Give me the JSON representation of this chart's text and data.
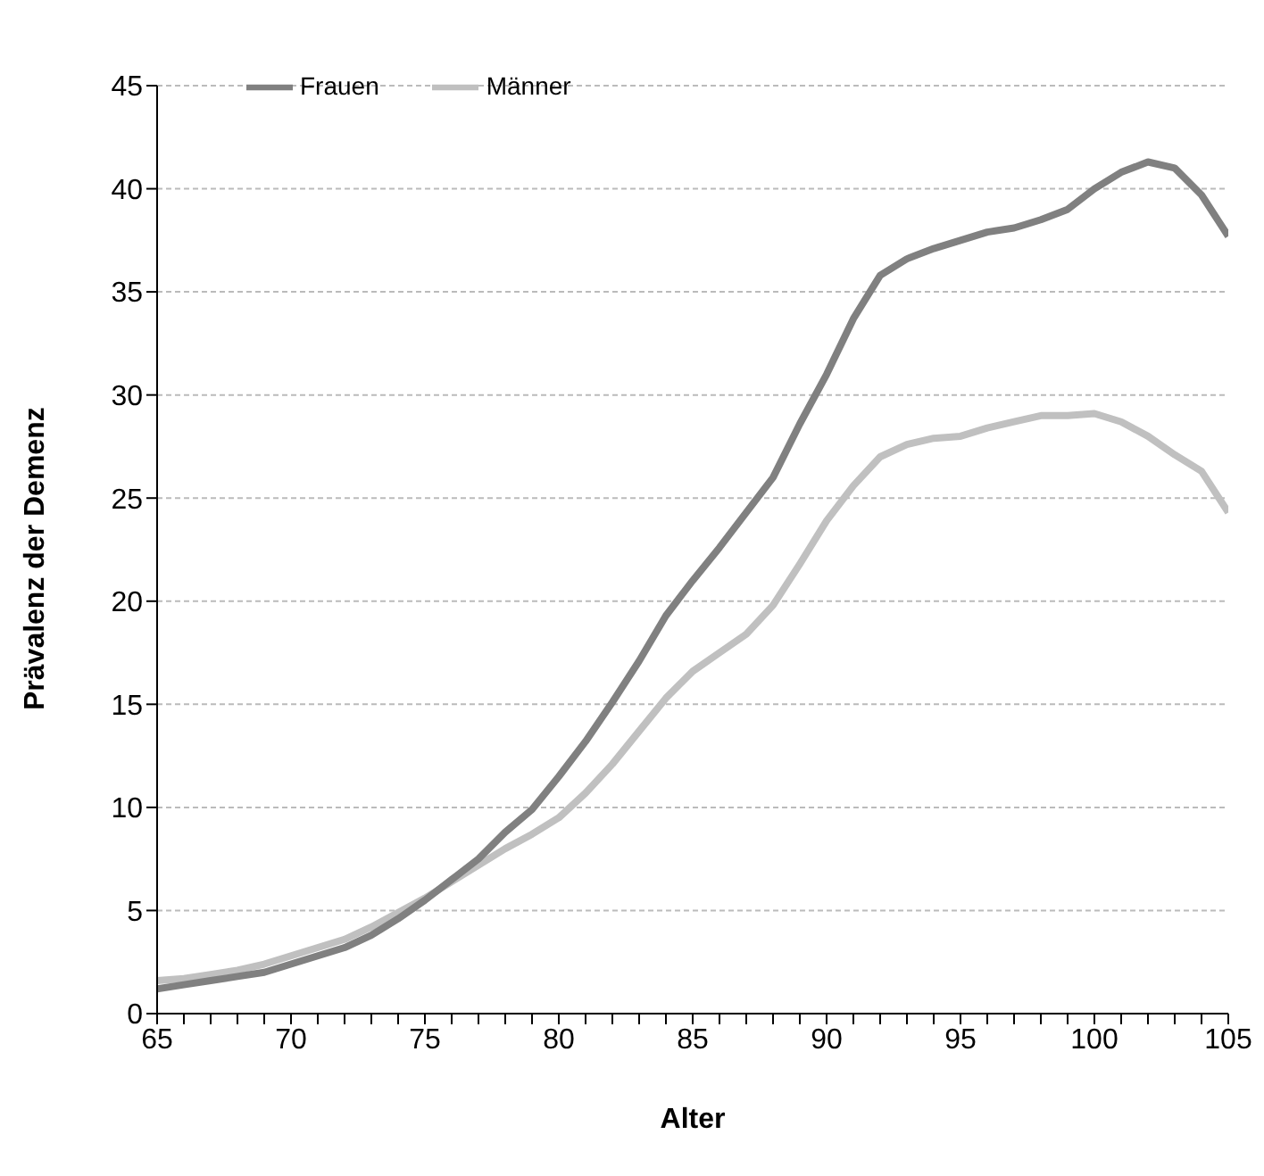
{
  "chart_data": {
    "type": "line",
    "xlabel": "Alter",
    "ylabel": "Prävalenz der Demenz",
    "x": [
      65,
      66,
      67,
      68,
      69,
      70,
      71,
      72,
      73,
      74,
      75,
      76,
      77,
      78,
      79,
      80,
      81,
      82,
      83,
      84,
      85,
      86,
      87,
      88,
      89,
      90,
      91,
      92,
      93,
      94,
      95,
      96,
      97,
      98,
      99,
      100,
      101,
      102,
      103,
      104,
      105
    ],
    "series": [
      {
        "name": "Männer",
        "color": "#c0c0c0",
        "values": [
          1.6,
          1.7,
          1.9,
          2.1,
          2.4,
          2.8,
          3.2,
          3.6,
          4.2,
          4.9,
          5.6,
          6.4,
          7.2,
          8.0,
          8.7,
          9.5,
          10.7,
          12.1,
          13.7,
          15.3,
          16.6,
          17.5,
          18.4,
          19.8,
          21.8,
          23.9,
          25.6,
          27.0,
          27.6,
          27.9,
          28.0,
          28.4,
          28.7,
          29.0,
          29.0,
          29.1,
          28.7,
          28.0,
          27.1,
          26.3,
          24.3
        ]
      },
      {
        "name": "Frauen",
        "color": "#808080",
        "values": [
          1.2,
          1.4,
          1.6,
          1.8,
          2.0,
          2.4,
          2.8,
          3.2,
          3.8,
          4.6,
          5.5,
          6.5,
          7.5,
          8.8,
          9.9,
          11.5,
          13.2,
          15.1,
          17.1,
          19.3,
          21.0,
          22.6,
          24.3,
          26.0,
          28.6,
          31.0,
          33.7,
          35.8,
          36.6,
          37.1,
          37.5,
          37.9,
          38.1,
          38.5,
          39.0,
          40.0,
          40.8,
          41.3,
          41.0,
          39.7,
          37.7
        ]
      }
    ],
    "xlim": [
      65,
      105
    ],
    "xticks": [
      65,
      {
        "value": 66,
        "label": null
      },
      {
        "value": 67,
        "label": null
      },
      {
        "value": 68,
        "label": null
      },
      {
        "value": 69,
        "label": null
      },
      70,
      {
        "value": 71,
        "label": null
      },
      {
        "value": 72,
        "label": null
      },
      {
        "value": 73,
        "label": null
      },
      {
        "value": 74,
        "label": null
      },
      75,
      {
        "value": 76,
        "label": null
      },
      {
        "value": 77,
        "label": null
      },
      {
        "value": 78,
        "label": null
      },
      {
        "value": 79,
        "label": null
      },
      80,
      {
        "value": 81,
        "label": null
      },
      {
        "value": 82,
        "label": null
      },
      {
        "value": 83,
        "label": null
      },
      {
        "value": 84,
        "label": null
      },
      85,
      {
        "value": 86,
        "label": null
      },
      {
        "value": 87,
        "label": null
      },
      {
        "value": 88,
        "label": null
      },
      {
        "value": 89,
        "label": null
      },
      90,
      {
        "value": 91,
        "label": null
      },
      {
        "value": 92,
        "label": null
      },
      {
        "value": 93,
        "label": null
      },
      {
        "value": 94,
        "label": null
      },
      95,
      {
        "value": 96,
        "label": null
      },
      {
        "value": 97,
        "label": null
      },
      {
        "value": 98,
        "label": null
      },
      {
        "value": 99,
        "label": null
      },
      100,
      {
        "value": 101,
        "label": null
      },
      {
        "value": 102,
        "label": null
      },
      {
        "value": 103,
        "label": null
      },
      {
        "value": 104,
        "label": null
      },
      105
    ],
    "ylim": [
      0,
      45
    ],
    "yticks": [
      0,
      5,
      10,
      15,
      20,
      25,
      30,
      35,
      40,
      45
    ],
    "grid": "y",
    "legend": "top left",
    "marker": "none",
    "line_style": "solid"
  }
}
